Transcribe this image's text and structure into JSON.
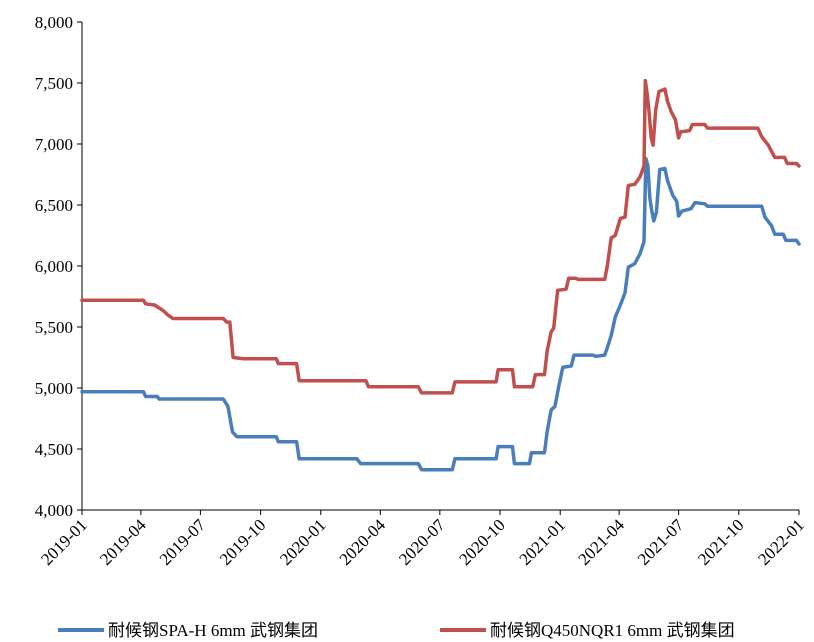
{
  "chart_data": {
    "type": "line",
    "title": "",
    "xlabel": "",
    "ylabel": "",
    "ylim": [
      4000,
      8000
    ],
    "y_ticks": [
      4000,
      4500,
      5000,
      5500,
      6000,
      6500,
      7000,
      7500,
      8000
    ],
    "y_tick_labels": [
      "4,000",
      "4,500",
      "5,000",
      "5,500",
      "6,000",
      "6,500",
      "7,000",
      "7,500",
      "8,000"
    ],
    "x_ticks": [
      "2019-01",
      "2019-04",
      "2019-07",
      "2019-10",
      "2020-01",
      "2020-04",
      "2020-07",
      "2020-10",
      "2021-01",
      "2021-04",
      "2021-07",
      "2021-10",
      "2022-01"
    ],
    "x_range": [
      "2019-01-01",
      "2022-01-01"
    ],
    "grid": false,
    "legend_position": "bottom",
    "series": [
      {
        "name": "耐候钢SPA-H 6mm 武钢集团",
        "color": "#4a7ebb",
        "points": [
          [
            "2019-01-01",
            4970
          ],
          [
            "2019-04-05",
            4970
          ],
          [
            "2019-04-08",
            4930
          ],
          [
            "2019-04-26",
            4930
          ],
          [
            "2019-04-29",
            4910
          ],
          [
            "2019-08-05",
            4910
          ],
          [
            "2019-08-12",
            4850
          ],
          [
            "2019-08-19",
            4640
          ],
          [
            "2019-08-26",
            4600
          ],
          [
            "2019-10-25",
            4600
          ],
          [
            "2019-10-28",
            4560
          ],
          [
            "2019-11-25",
            4560
          ],
          [
            "2019-11-29",
            4420
          ],
          [
            "2020-02-25",
            4420
          ],
          [
            "2020-03-02",
            4380
          ],
          [
            "2020-05-29",
            4380
          ],
          [
            "2020-06-03",
            4330
          ],
          [
            "2020-07-20",
            4330
          ],
          [
            "2020-07-24",
            4420
          ],
          [
            "2020-09-25",
            4420
          ],
          [
            "2020-09-28",
            4520
          ],
          [
            "2020-10-20",
            4520
          ],
          [
            "2020-10-23",
            4380
          ],
          [
            "2020-11-15",
            4380
          ],
          [
            "2020-11-18",
            4470
          ],
          [
            "2020-12-08",
            4470
          ],
          [
            "2020-12-12",
            4640
          ],
          [
            "2020-12-18",
            4820
          ],
          [
            "2020-12-24",
            4850
          ],
          [
            "2020-12-30",
            5020
          ],
          [
            "2021-01-05",
            5170
          ],
          [
            "2021-01-18",
            5180
          ],
          [
            "2021-01-22",
            5270
          ],
          [
            "2021-02-20",
            5270
          ],
          [
            "2021-02-25",
            5260
          ],
          [
            "2021-03-10",
            5270
          ],
          [
            "2021-03-14",
            5330
          ],
          [
            "2021-03-20",
            5430
          ],
          [
            "2021-03-26",
            5580
          ],
          [
            "2021-04-03",
            5680
          ],
          [
            "2021-04-10",
            5780
          ],
          [
            "2021-04-15",
            5990
          ],
          [
            "2021-04-25",
            6020
          ],
          [
            "2021-05-03",
            6100
          ],
          [
            "2021-05-09",
            6200
          ],
          [
            "2021-05-12",
            6880
          ],
          [
            "2021-05-15",
            6820
          ],
          [
            "2021-05-18",
            6560
          ],
          [
            "2021-05-21",
            6450
          ],
          [
            "2021-05-24",
            6370
          ],
          [
            "2021-05-28",
            6440
          ],
          [
            "2021-06-02",
            6790
          ],
          [
            "2021-06-10",
            6800
          ],
          [
            "2021-06-14",
            6700
          ],
          [
            "2021-06-22",
            6580
          ],
          [
            "2021-06-28",
            6530
          ],
          [
            "2021-07-01",
            6410
          ],
          [
            "2021-07-06",
            6450
          ],
          [
            "2021-07-20",
            6470
          ],
          [
            "2021-07-26",
            6520
          ],
          [
            "2021-08-10",
            6510
          ],
          [
            "2021-08-14",
            6490
          ],
          [
            "2021-11-05",
            6490
          ],
          [
            "2021-11-10",
            6400
          ],
          [
            "2021-11-20",
            6330
          ],
          [
            "2021-11-25",
            6260
          ],
          [
            "2021-12-08",
            6260
          ],
          [
            "2021-12-12",
            6210
          ],
          [
            "2021-12-28",
            6210
          ],
          [
            "2022-01-01",
            6180
          ]
        ]
      },
      {
        "name": "耐候钢Q450NQR1 6mm 武钢集团",
        "color": "#c0504d",
        "points": [
          [
            "2019-01-01",
            5720
          ],
          [
            "2019-04-05",
            5720
          ],
          [
            "2019-04-08",
            5690
          ],
          [
            "2019-04-22",
            5680
          ],
          [
            "2019-04-28",
            5660
          ],
          [
            "2019-05-06",
            5630
          ],
          [
            "2019-05-12",
            5600
          ],
          [
            "2019-05-20",
            5570
          ],
          [
            "2019-08-05",
            5570
          ],
          [
            "2019-08-10",
            5540
          ],
          [
            "2019-08-15",
            5540
          ],
          [
            "2019-08-20",
            5250
          ],
          [
            "2019-09-05",
            5240
          ],
          [
            "2019-10-25",
            5240
          ],
          [
            "2019-10-28",
            5200
          ],
          [
            "2019-11-25",
            5200
          ],
          [
            "2019-11-29",
            5060
          ],
          [
            "2020-03-10",
            5060
          ],
          [
            "2020-03-14",
            5010
          ],
          [
            "2020-05-29",
            5010
          ],
          [
            "2020-06-03",
            4960
          ],
          [
            "2020-07-20",
            4960
          ],
          [
            "2020-07-24",
            5050
          ],
          [
            "2020-09-25",
            5050
          ],
          [
            "2020-09-28",
            5150
          ],
          [
            "2020-10-20",
            5150
          ],
          [
            "2020-10-23",
            5010
          ],
          [
            "2020-11-20",
            5010
          ],
          [
            "2020-11-24",
            5110
          ],
          [
            "2020-12-08",
            5110
          ],
          [
            "2020-12-12",
            5300
          ],
          [
            "2020-12-18",
            5460
          ],
          [
            "2020-12-22",
            5490
          ],
          [
            "2020-12-28",
            5800
          ],
          [
            "2021-01-10",
            5810
          ],
          [
            "2021-01-14",
            5900
          ],
          [
            "2021-01-25",
            5900
          ],
          [
            "2021-01-28",
            5890
          ],
          [
            "2021-03-10",
            5890
          ],
          [
            "2021-03-14",
            6000
          ],
          [
            "2021-03-20",
            6230
          ],
          [
            "2021-03-26",
            6250
          ],
          [
            "2021-04-03",
            6390
          ],
          [
            "2021-04-10",
            6400
          ],
          [
            "2021-04-15",
            6660
          ],
          [
            "2021-04-25",
            6670
          ],
          [
            "2021-05-03",
            6730
          ],
          [
            "2021-05-09",
            6820
          ],
          [
            "2021-05-11",
            7520
          ],
          [
            "2021-05-14",
            7410
          ],
          [
            "2021-05-17",
            7250
          ],
          [
            "2021-05-20",
            7050
          ],
          [
            "2021-05-23",
            6990
          ],
          [
            "2021-05-27",
            7280
          ],
          [
            "2021-06-01",
            7430
          ],
          [
            "2021-06-10",
            7450
          ],
          [
            "2021-06-14",
            7350
          ],
          [
            "2021-06-20",
            7260
          ],
          [
            "2021-06-26",
            7200
          ],
          [
            "2021-07-01",
            7050
          ],
          [
            "2021-07-04",
            7100
          ],
          [
            "2021-07-18",
            7110
          ],
          [
            "2021-07-22",
            7160
          ],
          [
            "2021-08-10",
            7160
          ],
          [
            "2021-08-14",
            7130
          ],
          [
            "2021-10-30",
            7130
          ],
          [
            "2021-11-05",
            7060
          ],
          [
            "2021-11-15",
            6990
          ],
          [
            "2021-11-25",
            6890
          ],
          [
            "2021-12-10",
            6890
          ],
          [
            "2021-12-14",
            6840
          ],
          [
            "2021-12-28",
            6840
          ],
          [
            "2022-01-01",
            6820
          ]
        ]
      }
    ]
  }
}
